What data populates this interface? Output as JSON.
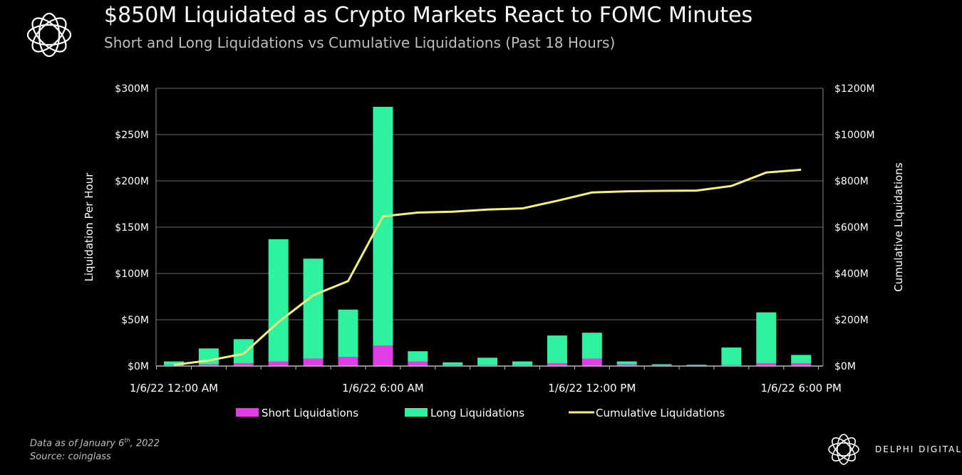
{
  "header": {
    "title": "$850M Liquidated as Crypto Markets React to FOMC Minutes",
    "subtitle": "Short and Long Liquidations vs Cumulative Liquidations (Past 18 Hours)"
  },
  "footer": {
    "data_note": "Data as of January 6",
    "data_note_sup": "th",
    "data_note_year": ", 2022",
    "source": "Source: coinglass",
    "brand": "DELPHI DIGITAL"
  },
  "colors": {
    "short": "#e03ce8",
    "long": "#2ef2a0",
    "cumulative": "#f2f27a",
    "grid": "#6a6a6a"
  },
  "chart_data": {
    "type": "bar",
    "stacked": true,
    "x": [
      "00:00",
      "01:00",
      "02:00",
      "03:00",
      "04:00",
      "05:00",
      "06:00",
      "07:00",
      "08:00",
      "09:00",
      "10:00",
      "11:00",
      "12:00",
      "13:00",
      "14:00",
      "15:00",
      "16:00",
      "17:00",
      "18:00"
    ],
    "xtick_labels": [
      "1/6/22 12:00 AM",
      "1/6/22 6:00 AM",
      "1/6/22 12:00 PM",
      "1/6/22 6:00 PM"
    ],
    "xtick_positions": [
      "00:00",
      "06:00",
      "12:00",
      "18:00"
    ],
    "series": [
      {
        "name": "Short Liquidations",
        "values": [
          1,
          2,
          3,
          5,
          8,
          10,
          22,
          5,
          1,
          1,
          1,
          3,
          8,
          2,
          1,
          1,
          1,
          3,
          3
        ]
      },
      {
        "name": "Long Liquidations",
        "values": [
          4,
          17,
          26,
          132,
          108,
          51,
          258,
          11,
          3,
          8,
          4,
          30,
          28,
          3,
          1,
          0.5,
          19,
          55,
          9
        ]
      },
      {
        "name": "Cumulative Liquidations",
        "axis": "right",
        "type": "line",
        "values": [
          5,
          24,
          53,
          190,
          306,
          367,
          647,
          663,
          667,
          676,
          681,
          714,
          750,
          755,
          757,
          758,
          778,
          836,
          848
        ]
      }
    ],
    "ylabel": "Liquidation Per Hour",
    "y2label": "Cumulative Liquidations",
    "ylim": [
      0,
      300
    ],
    "y2lim": [
      0,
      1200
    ],
    "yticks": [
      "$0M",
      "$50M",
      "$100M",
      "$150M",
      "$200M",
      "$250M",
      "$300M"
    ],
    "y2ticks": [
      "$0M",
      "$200M",
      "$400M",
      "$600M",
      "$800M",
      "$1000M",
      "$1200M"
    ],
    "grid": true,
    "legend": "bottom"
  }
}
